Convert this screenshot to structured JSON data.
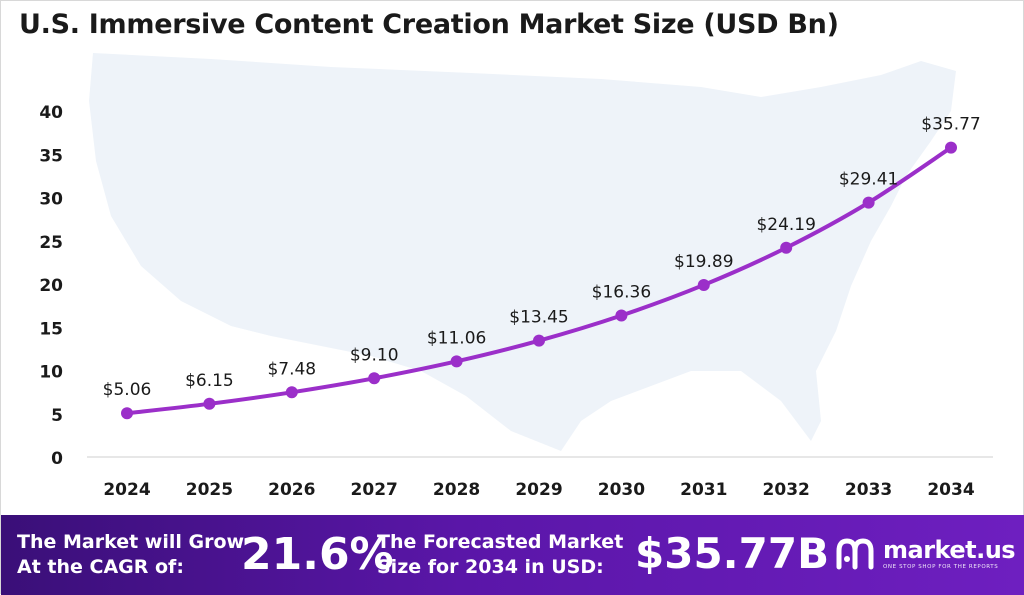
{
  "title": "U.S. Immersive Content Creation Market Size (USD Bn)",
  "chart_data": {
    "type": "line",
    "title": "U.S. Immersive Content Creation Market Size (USD Bn)",
    "xlabel": "",
    "ylabel": "",
    "ylim": [
      0,
      40
    ],
    "yticks": [
      0,
      5,
      10,
      15,
      20,
      25,
      30,
      35,
      40
    ],
    "categories": [
      "2024",
      "2025",
      "2026",
      "2027",
      "2028",
      "2029",
      "2030",
      "2031",
      "2032",
      "2033",
      "2034"
    ],
    "values": [
      5.06,
      6.15,
      7.48,
      9.1,
      11.06,
      13.45,
      16.36,
      19.89,
      24.19,
      29.41,
      35.77
    ],
    "data_labels": [
      "$5.06",
      "$6.15",
      "$7.48",
      "$9.10",
      "$11.06",
      "$13.45",
      "$16.36",
      "$19.89",
      "$24.19",
      "$29.41",
      "$35.77"
    ],
    "grid": false,
    "line_color": "#9b2fc9"
  },
  "footer": {
    "cagr_label_line1": "The Market will Grow",
    "cagr_label_line2": "At the CAGR of:",
    "cagr_value": "21.6%",
    "forecast_label_line1": "The Forecasted Market",
    "forecast_label_line2": "Size for 2034 in USD:",
    "forecast_value": "$35.77B",
    "brand_name": "market.us",
    "brand_tagline": "ONE STOP SHOP FOR THE REPORTS"
  },
  "colors": {
    "footer_bg": "#4b139a",
    "line": "#9b2fc9",
    "map": "#eef3f9"
  }
}
